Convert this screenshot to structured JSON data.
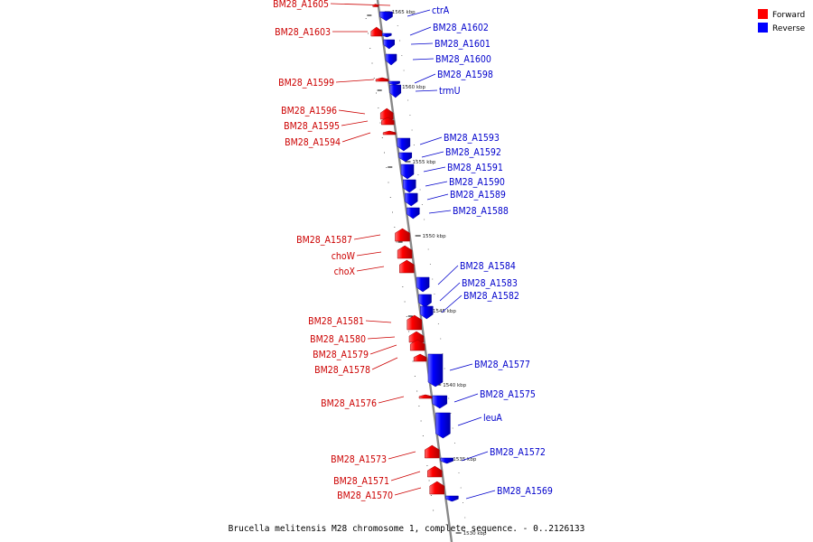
{
  "caption": "Brucella melitensis M28 chromosome 1, complete sequence. - 0..2126133",
  "legend": [
    {
      "label": "Forward",
      "color": "#ff0000"
    },
    {
      "label": "Reverse",
      "color": "#0000ff"
    }
  ],
  "colors": {
    "forward": "#ff0000",
    "reverse": "#0000ff",
    "backbone": "#888888"
  },
  "ticks": [
    "1565 kbp",
    "1560 kbp",
    "1555 kbp",
    "1550 kbp",
    "1545 kbp",
    "1540 kbp",
    "1535 kbp",
    "1530 kbp"
  ],
  "forward_genes": [
    "BM28_A1605",
    "BM28_A1603",
    "BM28_A1599",
    "BM28_A1596",
    "BM28_A1595",
    "BM28_A1594",
    "BM28_A1587",
    "choW",
    "choX",
    "BM28_A1581",
    "BM28_A1580",
    "BM28_A1579",
    "BM28_A1578",
    "BM28_A1576",
    "BM28_A1573",
    "BM28_A1571",
    "BM28_A1570"
  ],
  "reverse_genes": [
    "ctrA",
    "BM28_A1602",
    "BM28_A1601",
    "BM28_A1600",
    "BM28_A1598",
    "trmU",
    "BM28_A1593",
    "BM28_A1592",
    "BM28_A1591",
    "BM28_A1590",
    "BM28_A1589",
    "BM28_A1588",
    "BM28_A1584",
    "BM28_A1583",
    "BM28_A1582",
    "BM28_A1577",
    "BM28_A1575",
    "leuA",
    "BM28_A1572",
    "BM28_A1569"
  ]
}
